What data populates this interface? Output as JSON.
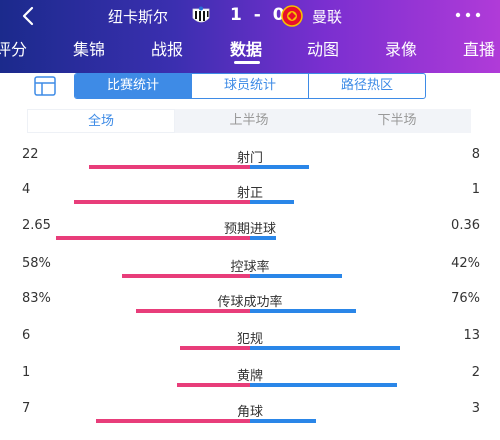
{
  "header": {
    "home_team": "纽卡斯尔",
    "away_team": "曼联",
    "score": "1 - 0",
    "back_icon": "chevron-left-icon",
    "more_icon": "more-dots-icon",
    "colors": {
      "gradient_start": "#1b2a8c",
      "gradient_end": "#b03bd8"
    }
  },
  "tabs": [
    {
      "label": "评分",
      "active": false
    },
    {
      "label": "集锦",
      "active": false
    },
    {
      "label": "战报",
      "active": false
    },
    {
      "label": "数据",
      "active": true
    },
    {
      "label": "动图",
      "active": false
    },
    {
      "label": "录像",
      "active": false
    },
    {
      "label": "直播",
      "active": false
    }
  ],
  "segment": {
    "icon": "document-layout-icon",
    "buttons": [
      {
        "label": "比赛统计",
        "active": true
      },
      {
        "label": "球员统计",
        "active": false
      },
      {
        "label": "路径热区",
        "active": false
      }
    ]
  },
  "periods": [
    {
      "label": "全场",
      "active": true
    },
    {
      "label": "上半场",
      "active": false
    },
    {
      "label": "下半场",
      "active": false
    }
  ],
  "stats": [
    {
      "name": "射门",
      "home": "22",
      "away": "8",
      "home_share": 0.73,
      "away_share": 0.27
    },
    {
      "name": "射正",
      "home": "4",
      "away": "1",
      "home_share": 0.8,
      "away_share": 0.2
    },
    {
      "name": "预期进球",
      "home": "2.65",
      "away": "0.36",
      "home_share": 0.88,
      "away_share": 0.12
    },
    {
      "name": "控球率",
      "home": "58%",
      "away": "42%",
      "home_share": 0.58,
      "away_share": 0.42
    },
    {
      "name": "传球成功率",
      "home": "83%",
      "away": "76%",
      "home_share": 0.52,
      "away_share": 0.48
    },
    {
      "name": "犯规",
      "home": "6",
      "away": "13",
      "home_share": 0.32,
      "away_share": 0.68
    },
    {
      "name": "黄牌",
      "home": "1",
      "away": "2",
      "home_share": 0.33,
      "away_share": 0.67
    },
    {
      "name": "角球",
      "home": "7",
      "away": "3",
      "home_share": 0.7,
      "away_share": 0.3
    }
  ],
  "colors": {
    "home_bar": "#e83d7a",
    "away_bar": "#2a86e8",
    "accent": "#3e8be6"
  }
}
